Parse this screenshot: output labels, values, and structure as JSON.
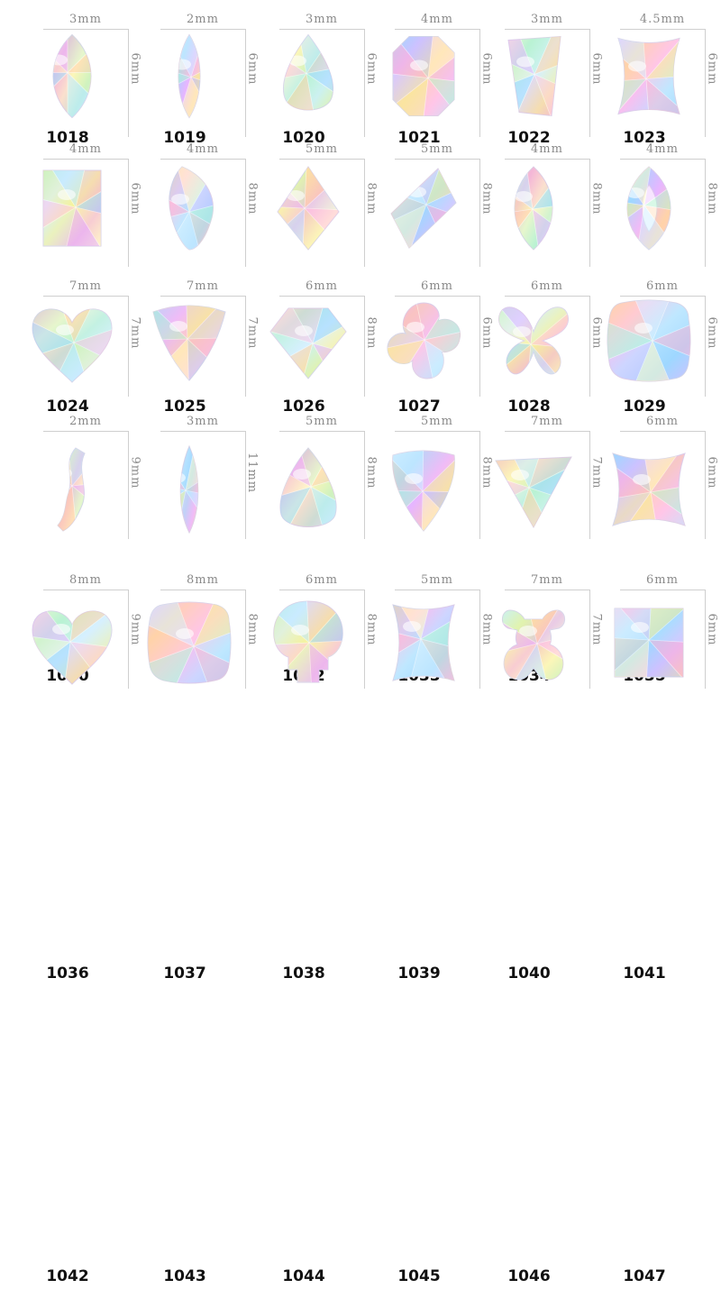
{
  "products": [
    {
      "code": "1018",
      "width": "3mm",
      "height": "6mm",
      "shape": "marquise-icon"
    },
    {
      "code": "1019",
      "width": "2mm",
      "height": "6mm",
      "shape": "navette-icon"
    },
    {
      "code": "1020",
      "width": "3mm",
      "height": "6mm",
      "shape": "teardrop-icon"
    },
    {
      "code": "1021",
      "width": "4mm",
      "height": "6mm",
      "shape": "octagon-icon"
    },
    {
      "code": "1022",
      "width": "3mm",
      "height": "6mm",
      "shape": "trapezoid-icon"
    },
    {
      "code": "1023",
      "width": "4.5mm",
      "height": "6mm",
      "shape": "hourglass-icon"
    },
    {
      "code": "1024",
      "width": "4mm",
      "height": "6mm",
      "shape": "rectangle-icon"
    },
    {
      "code": "1025",
      "width": "4mm",
      "height": "8mm",
      "shape": "flame-icon"
    },
    {
      "code": "1026",
      "width": "5mm",
      "height": "8mm",
      "shape": "kite-icon"
    },
    {
      "code": "1027",
      "width": "5mm",
      "height": "8mm",
      "shape": "rhombus-icon"
    },
    {
      "code": "1028",
      "width": "4mm",
      "height": "8mm",
      "shape": "marquise-icon"
    },
    {
      "code": "1029",
      "width": "4mm",
      "height": "8mm",
      "shape": "eye-icon"
    },
    {
      "code": "1030",
      "width": "7mm",
      "height": "7mm",
      "shape": "heart-icon"
    },
    {
      "code": "1031",
      "width": "7mm",
      "height": "7mm",
      "shape": "trillion-icon"
    },
    {
      "code": "1032",
      "width": "6mm",
      "height": "8mm",
      "shape": "diamond-icon"
    },
    {
      "code": "1033",
      "width": "6mm",
      "height": "6mm",
      "shape": "flower-icon"
    },
    {
      "code": "1034",
      "width": "6mm",
      "height": "6mm",
      "shape": "butterfly-icon"
    },
    {
      "code": "1035",
      "width": "6mm",
      "height": "6mm",
      "shape": "cushion-icon"
    },
    {
      "code": "1036",
      "width": "2mm",
      "height": "9mm",
      "shape": "wave-icon"
    },
    {
      "code": "1037",
      "width": "3mm",
      "height": "11mm",
      "shape": "long-navette-icon"
    },
    {
      "code": "1038",
      "width": "5mm",
      "height": "8mm",
      "shape": "pear-icon"
    },
    {
      "code": "1039",
      "width": "5mm",
      "height": "8mm",
      "shape": "shield-icon"
    },
    {
      "code": "1040",
      "width": "7mm",
      "height": "7mm",
      "shape": "triangle-icon"
    },
    {
      "code": "1041",
      "width": "6mm",
      "height": "6mm",
      "shape": "concave-square-icon"
    },
    {
      "code": "1042",
      "width": "8mm",
      "height": "9mm",
      "shape": "heart-icon"
    },
    {
      "code": "1043",
      "width": "8mm",
      "height": "8mm",
      "shape": "cushion-icon"
    },
    {
      "code": "1044",
      "width": "6mm",
      "height": "8mm",
      "shape": "skull-icon"
    },
    {
      "code": "1045",
      "width": "5mm",
      "height": "8mm",
      "shape": "hourglass-icon"
    },
    {
      "code": "1046",
      "width": "7mm",
      "height": "7mm",
      "shape": "bear-icon"
    },
    {
      "code": "1047",
      "width": "6mm",
      "height": "6mm",
      "shape": "square-icon"
    }
  ]
}
